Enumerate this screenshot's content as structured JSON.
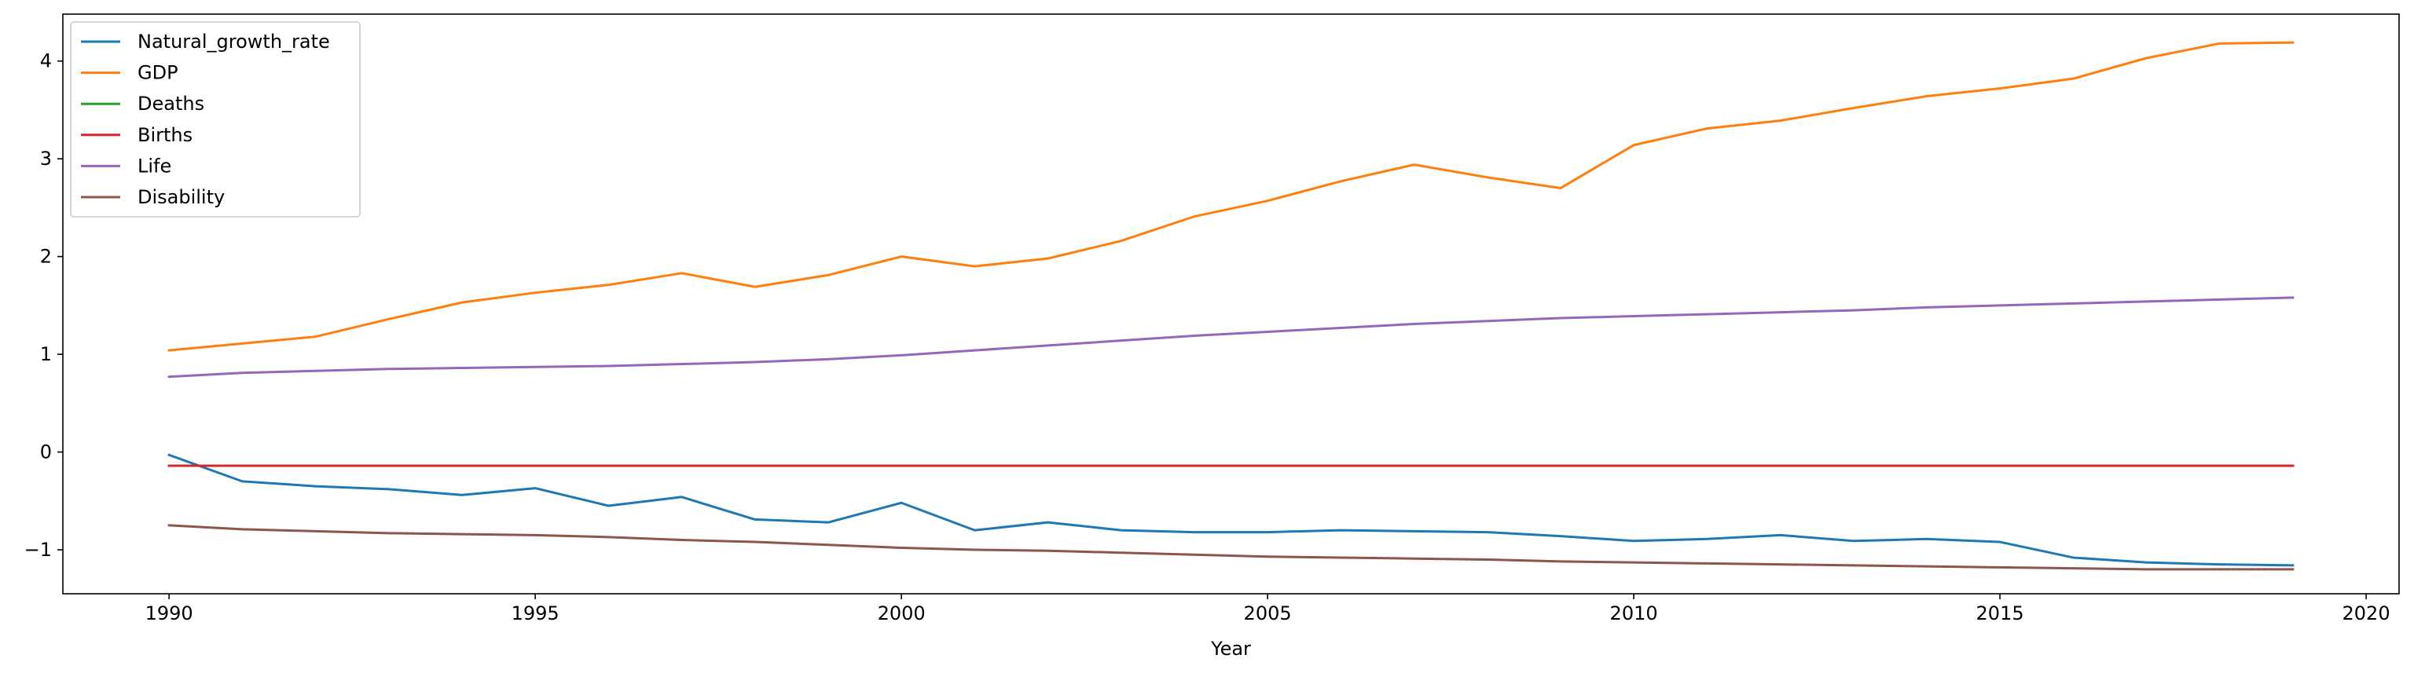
{
  "chart_data": {
    "type": "line",
    "title": "",
    "xlabel": "Year",
    "ylabel": "",
    "xlim": [
      1988.55,
      2020.45
    ],
    "ylim": [
      -1.45,
      4.48
    ],
    "xticks": [
      1990,
      1995,
      2000,
      2005,
      2010,
      2015,
      2020
    ],
    "xtick_labels": [
      "1990",
      "1995",
      "2000",
      "2005",
      "2010",
      "2015",
      "2020"
    ],
    "yticks": [
      -1,
      0,
      1,
      2,
      3,
      4
    ],
    "ytick_labels": [
      "−1",
      "0",
      "1",
      "2",
      "3",
      "4"
    ],
    "grid": false,
    "legend_position": "top-left",
    "x": [
      1990,
      1991,
      1992,
      1993,
      1994,
      1995,
      1996,
      1997,
      1998,
      1999,
      2000,
      2001,
      2002,
      2003,
      2004,
      2005,
      2006,
      2007,
      2008,
      2009,
      2010,
      2011,
      2012,
      2013,
      2014,
      2015,
      2016,
      2017,
      2018,
      2019
    ],
    "series": [
      {
        "name": "Natural_growth_rate",
        "color": "#1f77b4",
        "values": [
          -0.03,
          -0.3,
          -0.35,
          -0.38,
          -0.44,
          -0.37,
          -0.55,
          -0.46,
          -0.69,
          -0.72,
          -0.52,
          -0.8,
          -0.72,
          -0.8,
          -0.82,
          -0.82,
          -0.8,
          -0.81,
          -0.82,
          -0.86,
          -0.91,
          -0.89,
          -0.85,
          -0.91,
          -0.89,
          -0.92,
          -1.08,
          -1.13,
          -1.15,
          -1.16
        ]
      },
      {
        "name": "GDP",
        "color": "#ff7f0e",
        "values": [
          1.04,
          1.11,
          1.18,
          1.36,
          1.53,
          1.63,
          1.71,
          1.83,
          1.69,
          1.81,
          2.0,
          1.9,
          1.98,
          2.16,
          2.41,
          2.57,
          2.77,
          2.94,
          2.81,
          2.7,
          3.14,
          3.31,
          3.39,
          3.52,
          3.64,
          3.72,
          3.82,
          4.03,
          4.18,
          4.19
        ]
      },
      {
        "name": "Deaths",
        "color": "#2ca02c",
        "values": [
          -0.14,
          -0.14,
          -0.14,
          -0.14,
          -0.14,
          -0.14,
          -0.14,
          -0.14,
          -0.14,
          -0.14,
          -0.14,
          -0.14,
          -0.14,
          -0.14,
          -0.14,
          -0.14,
          -0.14,
          -0.14,
          -0.14,
          -0.14,
          -0.14,
          -0.14,
          -0.14,
          -0.14,
          -0.14,
          -0.14,
          -0.14,
          -0.14,
          -0.14,
          -0.14
        ]
      },
      {
        "name": "Births",
        "color": "#d62728",
        "values": [
          -0.14,
          -0.14,
          -0.14,
          -0.14,
          -0.14,
          -0.14,
          -0.14,
          -0.14,
          -0.14,
          -0.14,
          -0.14,
          -0.14,
          -0.14,
          -0.14,
          -0.14,
          -0.14,
          -0.14,
          -0.14,
          -0.14,
          -0.14,
          -0.14,
          -0.14,
          -0.14,
          -0.14,
          -0.14,
          -0.14,
          -0.14,
          -0.14,
          -0.14,
          -0.14
        ]
      },
      {
        "name": "Life",
        "color": "#9467bd",
        "values": [
          0.77,
          0.81,
          0.83,
          0.85,
          0.86,
          0.87,
          0.88,
          0.9,
          0.92,
          0.95,
          0.99,
          1.04,
          1.09,
          1.14,
          1.19,
          1.23,
          1.27,
          1.31,
          1.34,
          1.37,
          1.39,
          1.41,
          1.43,
          1.45,
          1.48,
          1.5,
          1.52,
          1.54,
          1.56,
          1.58
        ]
      },
      {
        "name": "Disability",
        "color": "#8c564b",
        "values": [
          -0.75,
          -0.79,
          -0.81,
          -0.83,
          -0.84,
          -0.85,
          -0.87,
          -0.9,
          -0.92,
          -0.95,
          -0.98,
          -1.0,
          -1.01,
          -1.03,
          -1.05,
          -1.07,
          -1.08,
          -1.09,
          -1.1,
          -1.12,
          -1.13,
          -1.14,
          -1.15,
          -1.16,
          -1.17,
          -1.18,
          -1.19,
          -1.2,
          -1.2,
          -1.2
        ]
      }
    ]
  }
}
